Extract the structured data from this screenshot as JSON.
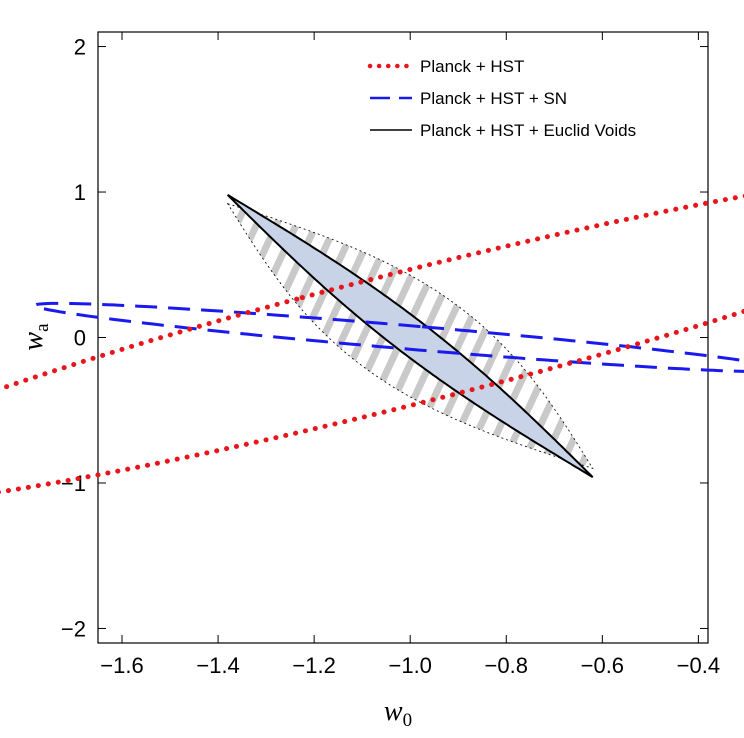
{
  "chart_data": {
    "type": "contour",
    "xlabel_main": "w",
    "xlabel_sub": "0",
    "ylabel_main": "w",
    "ylabel_sub": "a",
    "xlim": [
      -1.65,
      -0.38
    ],
    "ylim": [
      -2.1,
      2.1
    ],
    "xticks": [
      -1.6,
      -1.4,
      -1.2,
      -1.0,
      -0.8,
      -0.6,
      -0.4
    ],
    "xtick_labels": [
      "−1.6",
      "−1.4",
      "−1.2",
      "−1.0",
      "−0.8",
      "−0.6",
      "−0.4"
    ],
    "yticks": [
      2,
      1,
      0,
      -1,
      -2
    ],
    "ytick_labels": [
      "2",
      "1",
      "0",
      "−1",
      "−2"
    ],
    "legend_position": "top-right",
    "series": [
      {
        "name": "Planck + HST",
        "style": "dotted",
        "color": "#e8161b",
        "ellipse": {
          "center": [
            -1.0,
            0.0
          ],
          "semi_axes": [
            0.3545,
            1.724
          ],
          "rotation_deg": 131.8
        }
      },
      {
        "name": "Planck + HST + SN",
        "style": "dashed",
        "color": "#1a1aee",
        "ellipse": {
          "center": [
            -1.0,
            0.0
          ],
          "semi_axes": [
            0.0778,
            0.8115
          ],
          "rotation_deg": 74.1
        }
      },
      {
        "name": "Planck + HST + Euclid Voids",
        "style": "solid",
        "color": "#000000",
        "fill": "#c8d3e8",
        "ellipse": {
          "center": [
            -1.0,
            0.0
          ],
          "semi_axes": [
            0.0,
            0.0
          ],
          "rotation_deg": 0
        },
        "line": {
          "x": [
            -1.38,
            -0.62
          ],
          "y": [
            0.98,
            -0.96
          ],
          "half_width": 0.03
        }
      }
    ],
    "extra_regions": [
      {
        "style": "hatched",
        "color": "#bdbdbd",
        "outline": "dotted",
        "x": [
          -1.38,
          -0.62
        ],
        "y": [
          0.92,
          -0.9
        ],
        "half_width": 0.09
      }
    ]
  }
}
